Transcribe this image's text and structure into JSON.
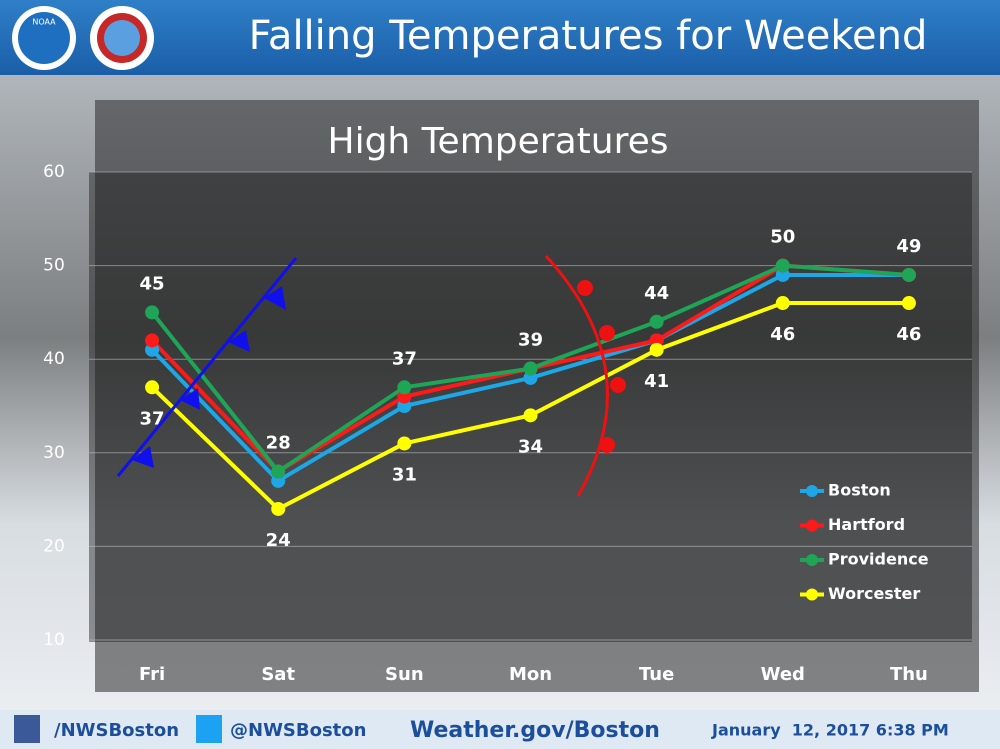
{
  "header": {
    "logo": "NOAA",
    "title": "Falling Temperatures for Weekend"
  },
  "chart_data": {
    "type": "line",
    "title": "High Temperatures",
    "categories": [
      "Fri",
      "Sat",
      "Sun",
      "Mon",
      "Tue",
      "Wed",
      "Thu"
    ],
    "series": [
      {
        "name": "Boston",
        "color": "#1ea7e6",
        "values": [
          41,
          27,
          35,
          38,
          42,
          49,
          49
        ]
      },
      {
        "name": "Hartford",
        "color": "#ff1a1a",
        "values": [
          42,
          28,
          36,
          39,
          42,
          50,
          49
        ]
      },
      {
        "name": "Providence",
        "color": "#1ea556",
        "values": [
          45,
          28,
          37,
          39,
          44,
          50,
          49
        ],
        "show_labels": true,
        "label_side": "above"
      },
      {
        "name": "Worcester",
        "color": "#ffff00",
        "values": [
          37,
          24,
          31,
          34,
          41,
          46,
          46
        ],
        "show_labels": true,
        "label_side": "below"
      }
    ],
    "ylim": [
      10,
      60
    ],
    "yticks": [
      10,
      20,
      30,
      40,
      50,
      60
    ],
    "grid": true,
    "legend": "lower right"
  },
  "footer": {
    "facebook": "/NWSBoston",
    "twitter": "@NWSBoston",
    "website": "Weather.gov/Boston",
    "timestamp": "January  12, 2017 6:38 PM"
  }
}
